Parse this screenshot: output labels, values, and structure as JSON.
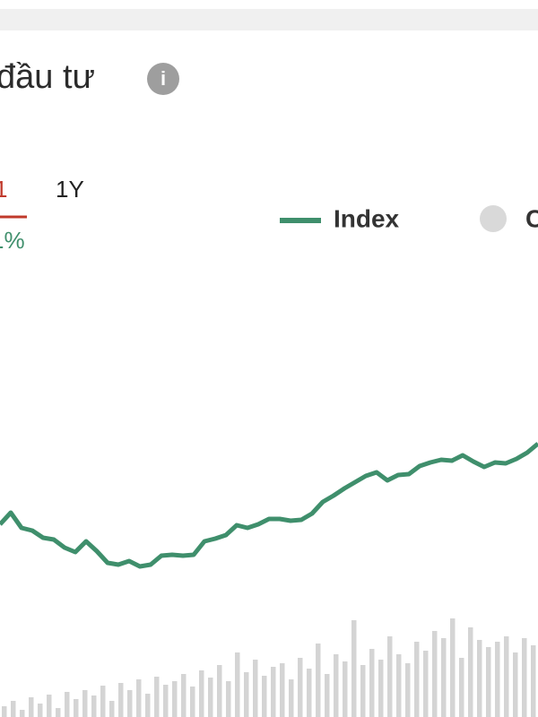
{
  "header": {
    "title": "đầu tư",
    "info_icon": "i"
  },
  "tabs": [
    "1",
    "1Y"
  ],
  "change": "1%",
  "legend": [
    {
      "name": "Index",
      "color": "#3f8f6c"
    },
    {
      "name": "C",
      "color": "#d9d9d9"
    }
  ],
  "chart_data": {
    "type": "line",
    "series": [
      {
        "name": "Index",
        "color": "#3f8f6c",
        "values": [
          215,
          228,
          211,
          208,
          200,
          198,
          189,
          184,
          196,
          185,
          172,
          170,
          174,
          168,
          170,
          180,
          181,
          180,
          181,
          196,
          199,
          203,
          214,
          211,
          215,
          221,
          221,
          219,
          220,
          227,
          240,
          247,
          255,
          262,
          269,
          273,
          264,
          270,
          271,
          280,
          284,
          287,
          286,
          292,
          285,
          279,
          284,
          283,
          288,
          295,
          305
        ]
      }
    ],
    "volume": {
      "color": "#d4d4d4",
      "values": [
        12,
        18,
        8,
        22,
        15,
        25,
        10,
        28,
        20,
        30,
        24,
        35,
        18,
        38,
        30,
        42,
        26,
        45,
        36,
        40,
        48,
        34,
        52,
        44,
        58,
        40,
        72,
        50,
        64,
        46,
        56,
        60,
        42,
        66,
        54,
        82,
        48,
        70,
        62,
        108,
        58,
        76,
        64,
        90,
        70,
        60,
        84,
        74,
        96,
        88,
        110,
        66,
        100,
        86,
        78,
        84,
        90,
        72,
        88,
        80
      ]
    }
  }
}
